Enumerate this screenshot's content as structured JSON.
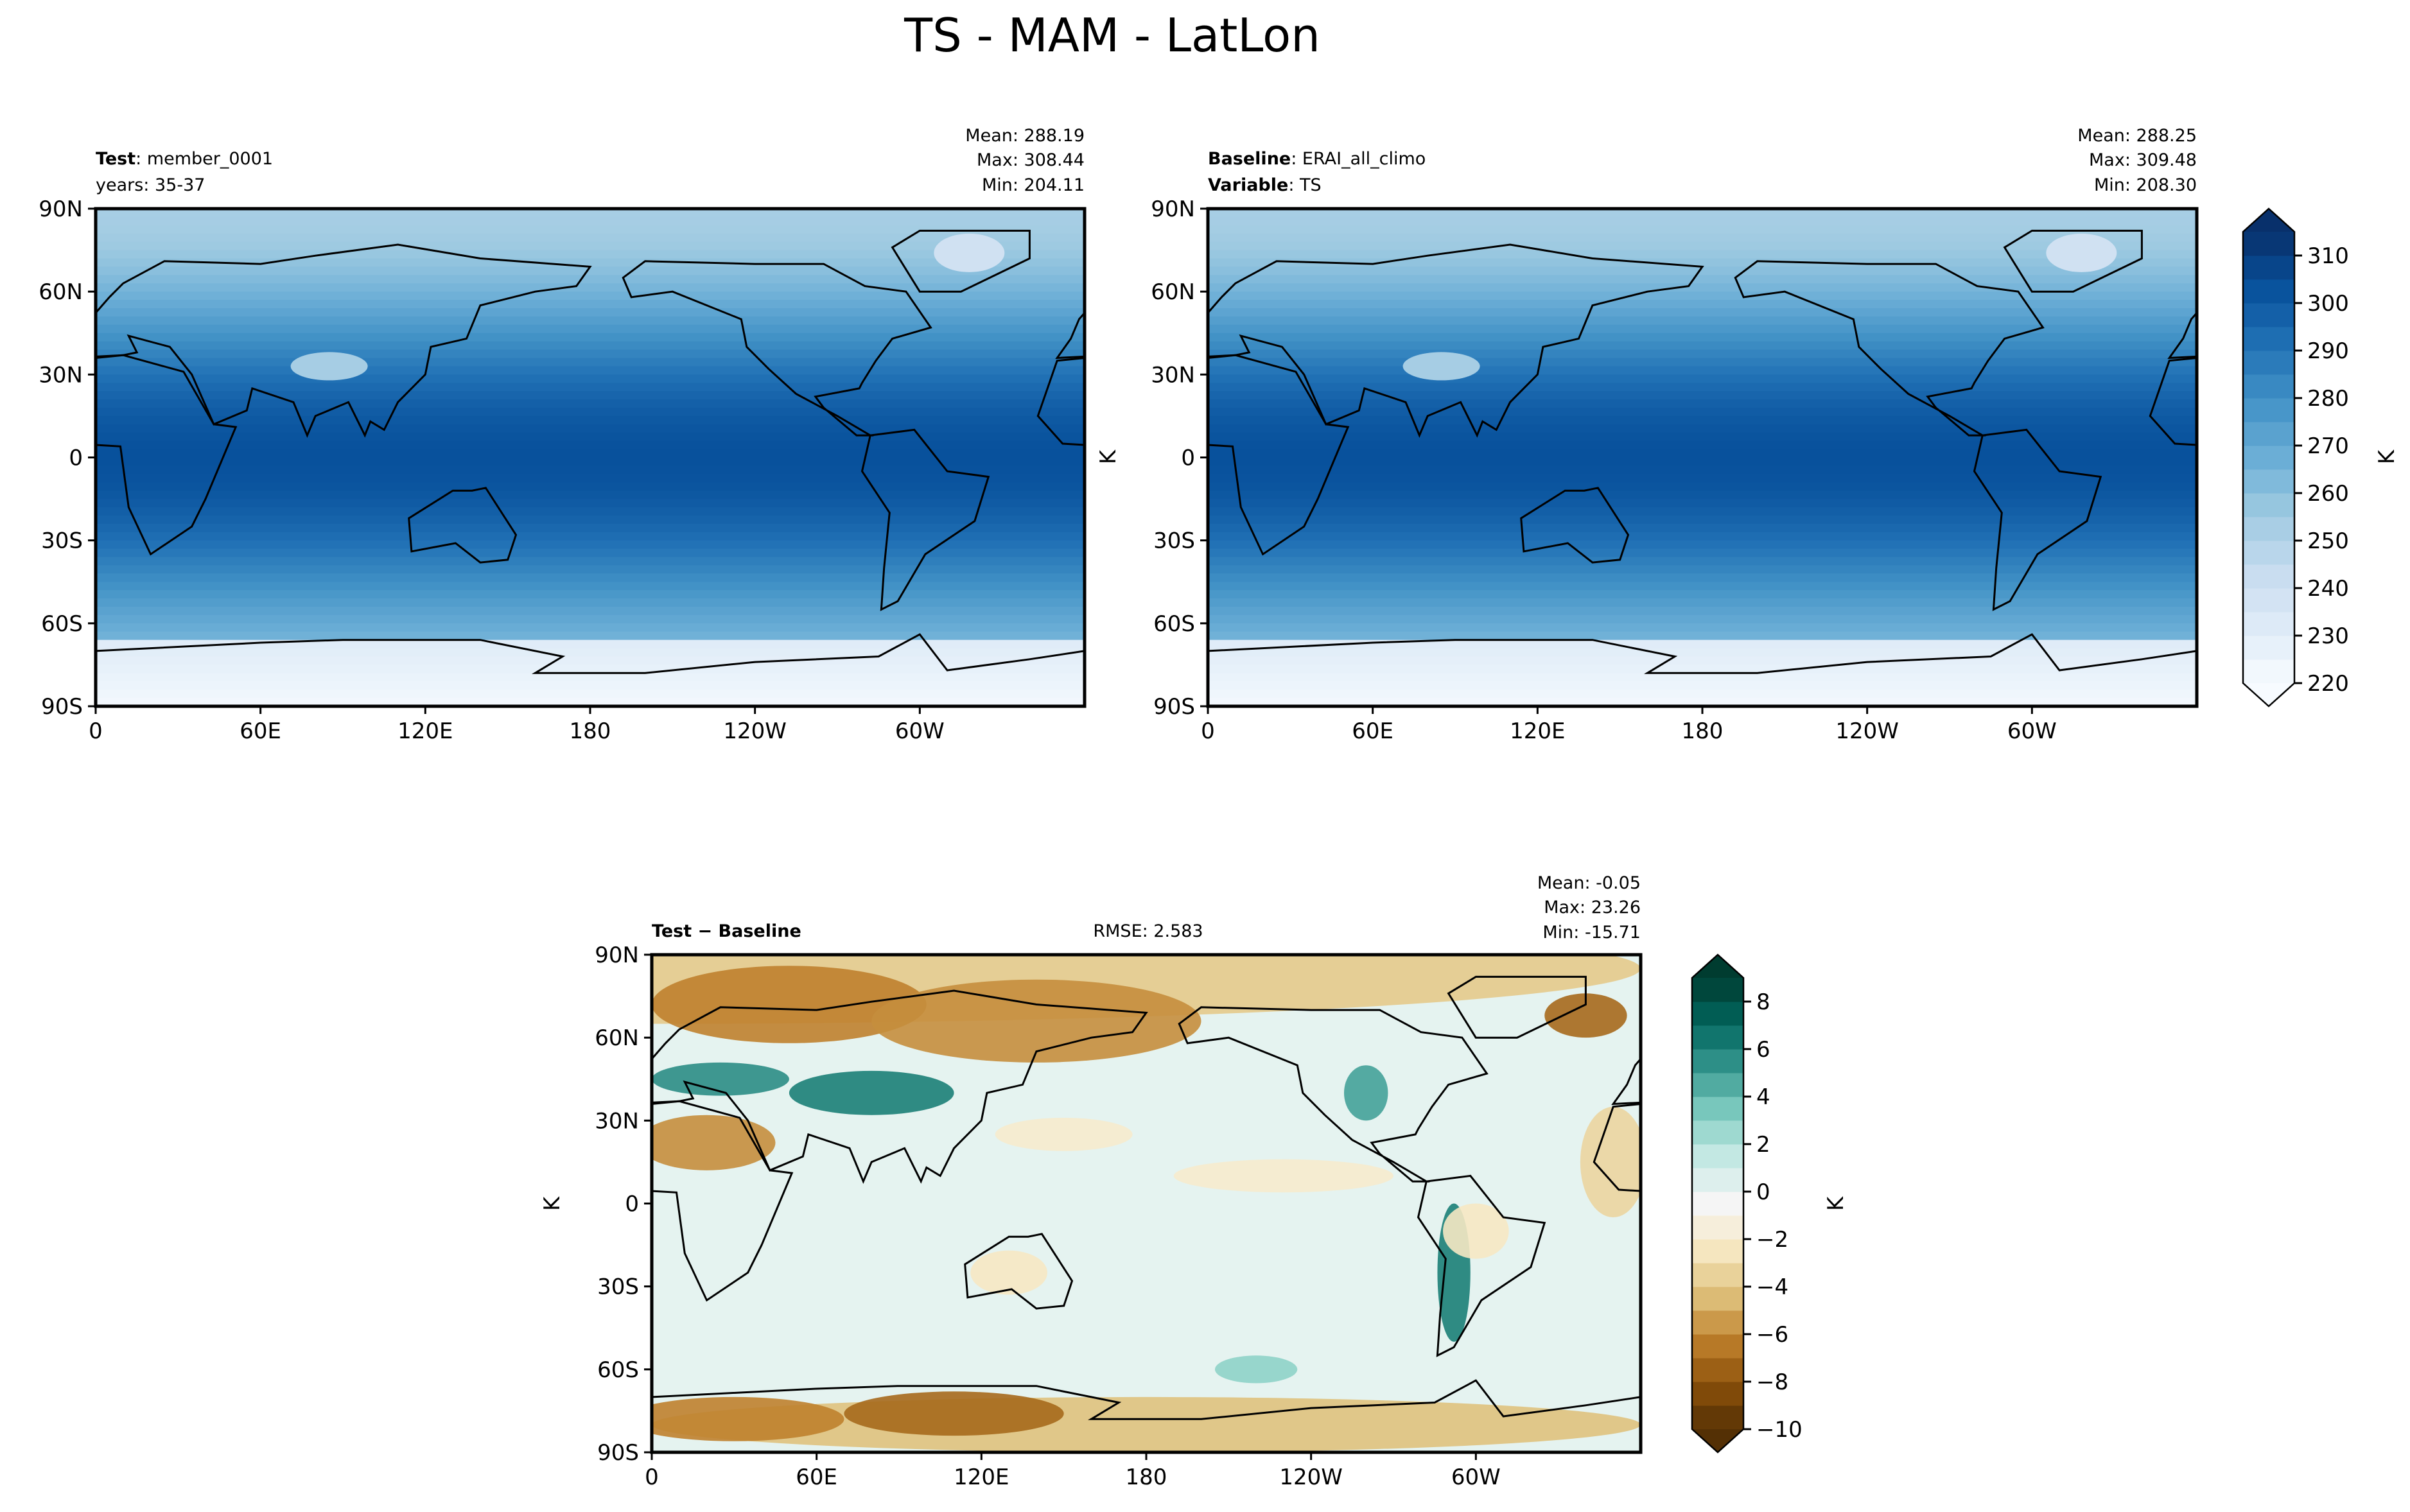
{
  "title": "TS - MAM - LatLon",
  "chart_data": [
    {
      "type": "heatmap",
      "panel": "test",
      "title_bold": "Test",
      "title_value": "member_0001",
      "subtitle": "years: 35-37",
      "stats": [
        "Mean: 288.19",
        "Max: 308.44",
        "Min: 204.11"
      ],
      "xticks": [
        "0",
        "60E",
        "120E",
        "180",
        "120W",
        "60W"
      ],
      "yticks": [
        "90N",
        "60N",
        "30N",
        "0",
        "30S",
        "60S",
        "90S"
      ],
      "ylabel": "",
      "colormap": "blues"
    },
    {
      "type": "heatmap",
      "panel": "baseline",
      "title_bold": "Baseline",
      "title_value": "ERAI_all_climo",
      "subtitle_bold": "Variable",
      "subtitle_value": "TS",
      "stats": [
        "Mean: 288.25",
        "Max: 309.48",
        "Min: 208.30"
      ],
      "xticks": [
        "0",
        "60E",
        "120E",
        "180",
        "120W",
        "60W"
      ],
      "yticks": [
        "90N",
        "60N",
        "30N",
        "0",
        "30S",
        "60S",
        "90S"
      ],
      "ylabel": "K",
      "colormap": "blues"
    },
    {
      "type": "heatmap",
      "panel": "difference",
      "title_bold": "Test − Baseline",
      "rmse": "RMSE: 2.583",
      "stats": [
        "Mean: -0.05",
        "Max: 23.26",
        "Min: -15.71"
      ],
      "xticks": [
        "0",
        "60E",
        "120E",
        "180",
        "120W",
        "60W"
      ],
      "yticks": [
        "90N",
        "60N",
        "30N",
        "0",
        "30S",
        "60S",
        "90S"
      ],
      "ylabel": "K",
      "colormap": "brbg"
    }
  ],
  "colorbars": [
    {
      "label": "K",
      "range": [
        220,
        315
      ],
      "step": 5,
      "ticks": [
        "220",
        "230",
        "240",
        "250",
        "260",
        "270",
        "280",
        "290",
        "300",
        "310"
      ],
      "tick_values": [
        220,
        230,
        240,
        250,
        260,
        270,
        280,
        290,
        300,
        310
      ]
    },
    {
      "label": "K",
      "range": [
        -10,
        9
      ],
      "step": 1,
      "ticks": [
        "−10",
        "−8",
        "−6",
        "−4",
        "−2",
        "0",
        "2",
        "4",
        "6",
        "8"
      ],
      "tick_values": [
        -10,
        -8,
        -6,
        -4,
        -2,
        0,
        2,
        4,
        6,
        8
      ]
    }
  ]
}
